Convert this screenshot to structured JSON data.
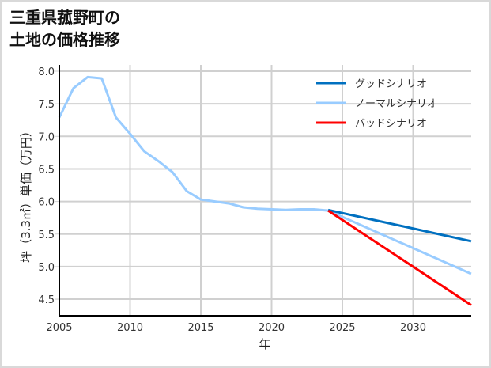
{
  "title_line1": "三重県菰野町の",
  "title_line2": "土地の価格推移",
  "chart_data": {
    "type": "line",
    "title": "三重県菰野町の土地の価格推移",
    "xlabel": "年",
    "ylabel": "坪（3.3㎡）単価（万円）",
    "xlim": [
      2005,
      2034.1
    ],
    "ylim": [
      4.25,
      8.05
    ],
    "xticks": [
      2005,
      2010,
      2015,
      2020,
      2025,
      2030
    ],
    "yticks": [
      4.5,
      5.0,
      5.5,
      6.0,
      6.5,
      7.0,
      7.5,
      8.0
    ],
    "grid": true,
    "legend_position": "upper right",
    "series": [
      {
        "name": "グッドシナリオ",
        "color": "#0070c0",
        "x": [
          2024,
          2034.1
        ],
        "values": [
          5.87,
          5.39
        ]
      },
      {
        "name": "ノーマルシナリオ",
        "color": "#99ccff",
        "x": [
          2005,
          2006,
          2007,
          2008,
          2009,
          2010,
          2011,
          2012,
          2013,
          2014,
          2015,
          2016,
          2017,
          2018,
          2019,
          2020,
          2021,
          2022,
          2023,
          2024,
          2034.1
        ],
        "values": [
          7.29,
          7.74,
          7.91,
          7.89,
          7.29,
          7.04,
          6.77,
          6.62,
          6.45,
          6.16,
          6.03,
          6.0,
          5.97,
          5.91,
          5.89,
          5.88,
          5.87,
          5.88,
          5.88,
          5.86,
          4.89
        ]
      },
      {
        "name": "バッドシナリオ",
        "color": "#ff0000",
        "x": [
          2024,
          2034.1
        ],
        "values": [
          5.86,
          4.41
        ]
      }
    ]
  }
}
